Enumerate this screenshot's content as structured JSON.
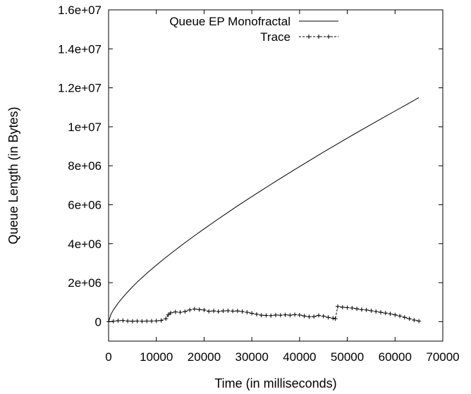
{
  "chart_data": {
    "type": "line",
    "title": "",
    "xlabel": "Time (in milliseconds)",
    "ylabel": "Queue Length (in Bytes)",
    "xlim": [
      0,
      70000
    ],
    "ylim": [
      -1000000,
      16000000
    ],
    "x_ticks": [
      0,
      10000,
      20000,
      30000,
      40000,
      50000,
      60000,
      70000
    ],
    "x_tick_labels": [
      "0",
      "10000",
      "20000",
      "30000",
      "40000",
      "50000",
      "60000",
      "70000"
    ],
    "y_ticks": [
      0,
      2000000,
      4000000,
      6000000,
      8000000,
      10000000,
      12000000,
      14000000,
      16000000
    ],
    "y_tick_labels": [
      "0",
      "2e+06",
      "4e+06",
      "6e+06",
      "8e+06",
      "1e+07",
      "1.2e+07",
      "1.4e+07",
      "1.6e+07"
    ],
    "grid": false,
    "legend_position": "top-center",
    "series": [
      {
        "name": "Queue EP Monofractal",
        "style": "solid",
        "color": "#000000",
        "x": [
          0,
          500,
          1000,
          2000,
          3000,
          4000,
          5000,
          6000,
          8000,
          10000,
          12000,
          14000,
          16000,
          18000,
          20000,
          22500,
          25000,
          27500,
          30000,
          32500,
          35000,
          37500,
          40000,
          42500,
          45000,
          47500,
          50000,
          52500,
          55000,
          57500,
          60000,
          62500,
          65000
        ],
        "y": [
          0,
          380000,
          600000,
          950000,
          1250000,
          1530000,
          1790000,
          2030000,
          2480000,
          2900000,
          3300000,
          3680000,
          4050000,
          4410000,
          4760000,
          5190000,
          5610000,
          6020000,
          6420000,
          6810000,
          7200000,
          7580000,
          7960000,
          8330000,
          8700000,
          9060000,
          9420000,
          9770000,
          10120000,
          10470000,
          10810000,
          11150000,
          11500000
        ]
      },
      {
        "name": "Trace",
        "style": "dashed",
        "marker": "+",
        "color": "#000000",
        "x": [
          0,
          1000,
          2000,
          3000,
          4000,
          5000,
          6000,
          7000,
          8000,
          9000,
          10000,
          11000,
          12000,
          12500,
          13000,
          14000,
          15000,
          16000,
          17000,
          18000,
          19000,
          20000,
          21000,
          22000,
          23000,
          24000,
          25000,
          26000,
          27000,
          28000,
          29000,
          30000,
          31000,
          32000,
          33000,
          34000,
          35000,
          36000,
          37000,
          38000,
          39000,
          40000,
          41000,
          42000,
          43000,
          44000,
          45000,
          46000,
          47000,
          47500,
          48000,
          49000,
          50000,
          51000,
          52000,
          53000,
          54000,
          55000,
          56000,
          57000,
          58000,
          59000,
          60000,
          61000,
          62000,
          63000,
          64000,
          65000
        ],
        "y": [
          0,
          20000,
          50000,
          60000,
          30000,
          20000,
          30000,
          20000,
          30000,
          30000,
          40000,
          60000,
          150000,
          350000,
          450000,
          500000,
          480000,
          520000,
          600000,
          650000,
          620000,
          600000,
          530000,
          550000,
          520000,
          550000,
          560000,
          540000,
          550000,
          520000,
          480000,
          430000,
          380000,
          330000,
          320000,
          310000,
          340000,
          330000,
          350000,
          330000,
          360000,
          340000,
          290000,
          250000,
          260000,
          320000,
          280000,
          220000,
          180000,
          150000,
          780000,
          740000,
          720000,
          700000,
          660000,
          620000,
          600000,
          560000,
          520000,
          480000,
          440000,
          400000,
          350000,
          290000,
          220000,
          150000,
          80000,
          30000
        ]
      }
    ]
  }
}
